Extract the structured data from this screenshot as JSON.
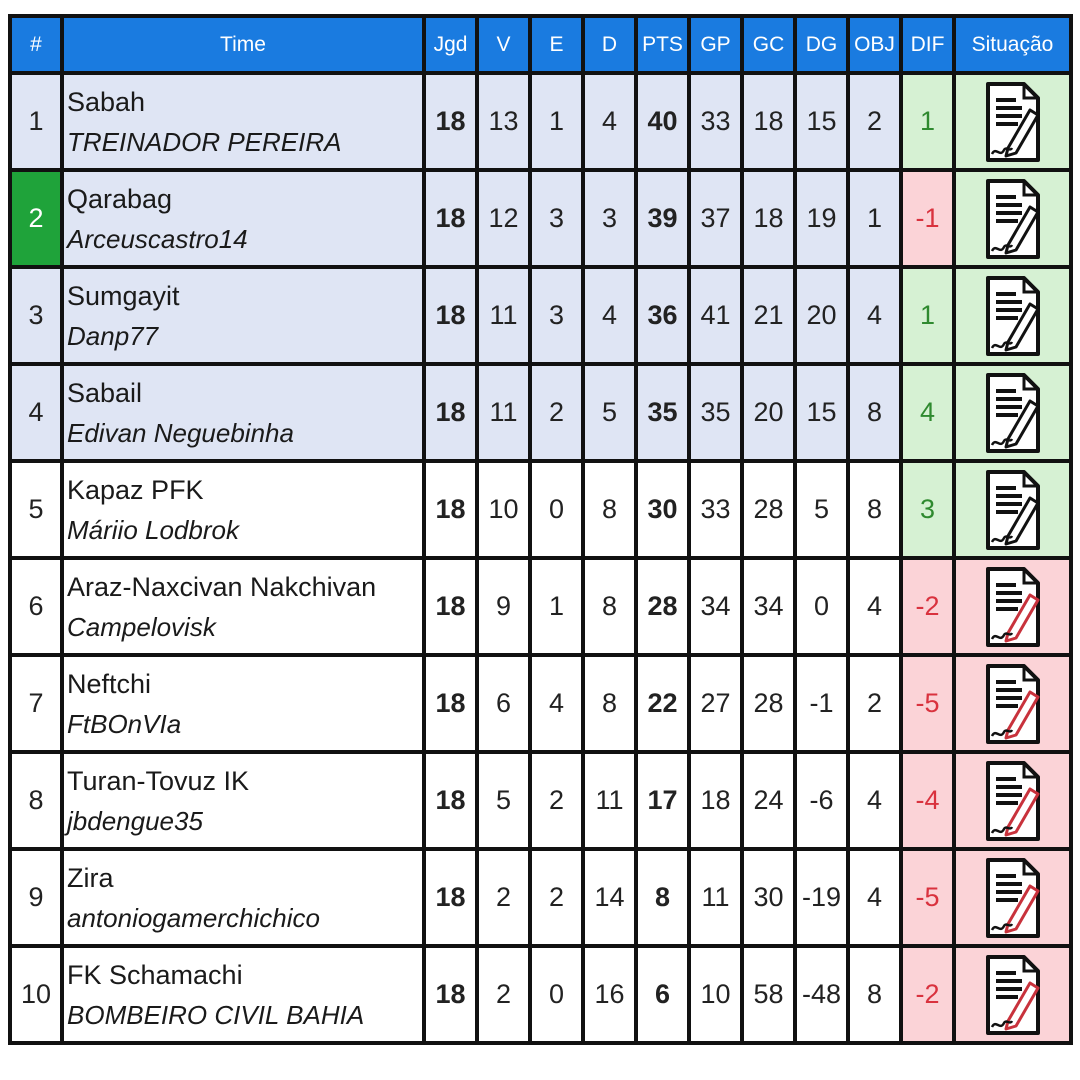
{
  "headers": {
    "pos": "#",
    "team": "Time",
    "jgd": "Jgd",
    "v": "V",
    "e": "E",
    "d": "D",
    "pts": "PTS",
    "gp": "GP",
    "gc": "GC",
    "dg": "DG",
    "obj": "OBJ",
    "dif": "DIF",
    "sit": "Situação"
  },
  "colors": {
    "header_bg": "#1a7be0",
    "zone_blue": "#dfe5f4",
    "leader_mark": "#1fa33a",
    "positive_bg": "#d6f1d3",
    "positive_text": "#2f8a2f",
    "negative_bg": "#fbd3d7",
    "negative_text": "#d9323e"
  },
  "rows": [
    {
      "pos": "1",
      "team": "Sabah",
      "coach": "TREINADOR PEREIRA",
      "jgd": "18",
      "v": "13",
      "e": "1",
      "d": "4",
      "pts": "40",
      "gp": "33",
      "gc": "18",
      "dg": "15",
      "obj": "2",
      "dif": "1",
      "status": "positive",
      "status_icon": "document-edit-icon"
    },
    {
      "pos": "2",
      "team": "Qarabag",
      "coach": "Arceuscastro14",
      "jgd": "18",
      "v": "12",
      "e": "3",
      "d": "3",
      "pts": "39",
      "gp": "37",
      "gc": "18",
      "dg": "19",
      "obj": "1",
      "dif": "-1",
      "status": "positive",
      "status_icon": "document-edit-icon"
    },
    {
      "pos": "3",
      "team": "Sumgayit",
      "coach": "Danp77",
      "jgd": "18",
      "v": "11",
      "e": "3",
      "d": "4",
      "pts": "36",
      "gp": "41",
      "gc": "21",
      "dg": "20",
      "obj": "4",
      "dif": "1",
      "status": "positive",
      "status_icon": "document-edit-icon"
    },
    {
      "pos": "4",
      "team": "Sabail",
      "coach": "Edivan Neguebinha",
      "jgd": "18",
      "v": "11",
      "e": "2",
      "d": "5",
      "pts": "35",
      "gp": "35",
      "gc": "20",
      "dg": "15",
      "obj": "8",
      "dif": "4",
      "status": "positive",
      "status_icon": "document-edit-icon"
    },
    {
      "pos": "5",
      "team": "Kapaz PFK",
      "coach": "Máriio Lodbrok",
      "jgd": "18",
      "v": "10",
      "e": "0",
      "d": "8",
      "pts": "30",
      "gp": "33",
      "gc": "28",
      "dg": "5",
      "obj": "8",
      "dif": "3",
      "status": "positive",
      "status_icon": "document-edit-icon"
    },
    {
      "pos": "6",
      "team": "Araz-Naxcivan Nakchivan",
      "coach": "Campelovisk",
      "jgd": "18",
      "v": "9",
      "e": "1",
      "d": "8",
      "pts": "28",
      "gp": "34",
      "gc": "34",
      "dg": "0",
      "obj": "4",
      "dif": "-2",
      "status": "negative",
      "status_icon": "document-edit-icon"
    },
    {
      "pos": "7",
      "team": "Neftchi",
      "coach": "FtBOnVIa",
      "jgd": "18",
      "v": "6",
      "e": "4",
      "d": "8",
      "pts": "22",
      "gp": "27",
      "gc": "28",
      "dg": "-1",
      "obj": "2",
      "dif": "-5",
      "status": "negative",
      "status_icon": "document-edit-icon"
    },
    {
      "pos": "8",
      "team": "Turan-Tovuz IK",
      "coach": "jbdengue35",
      "jgd": "18",
      "v": "5",
      "e": "2",
      "d": "11",
      "pts": "17",
      "gp": "18",
      "gc": "24",
      "dg": "-6",
      "obj": "4",
      "dif": "-4",
      "status": "negative",
      "status_icon": "document-edit-icon"
    },
    {
      "pos": "9",
      "team": "Zira",
      "coach": "antoniogamerchichico",
      "jgd": "18",
      "v": "2",
      "e": "2",
      "d": "14",
      "pts": "8",
      "gp": "11",
      "gc": "30",
      "dg": "-19",
      "obj": "4",
      "dif": "-5",
      "status": "negative",
      "status_icon": "document-edit-icon"
    },
    {
      "pos": "10",
      "team": "FK Schamachi",
      "coach": "BOMBEIRO CIVIL BAHIA",
      "jgd": "18",
      "v": "2",
      "e": "0",
      "d": "16",
      "pts": "6",
      "gp": "10",
      "gc": "58",
      "dg": "-48",
      "obj": "8",
      "dif": "-2",
      "status": "negative",
      "status_icon": "document-edit-icon"
    }
  ]
}
